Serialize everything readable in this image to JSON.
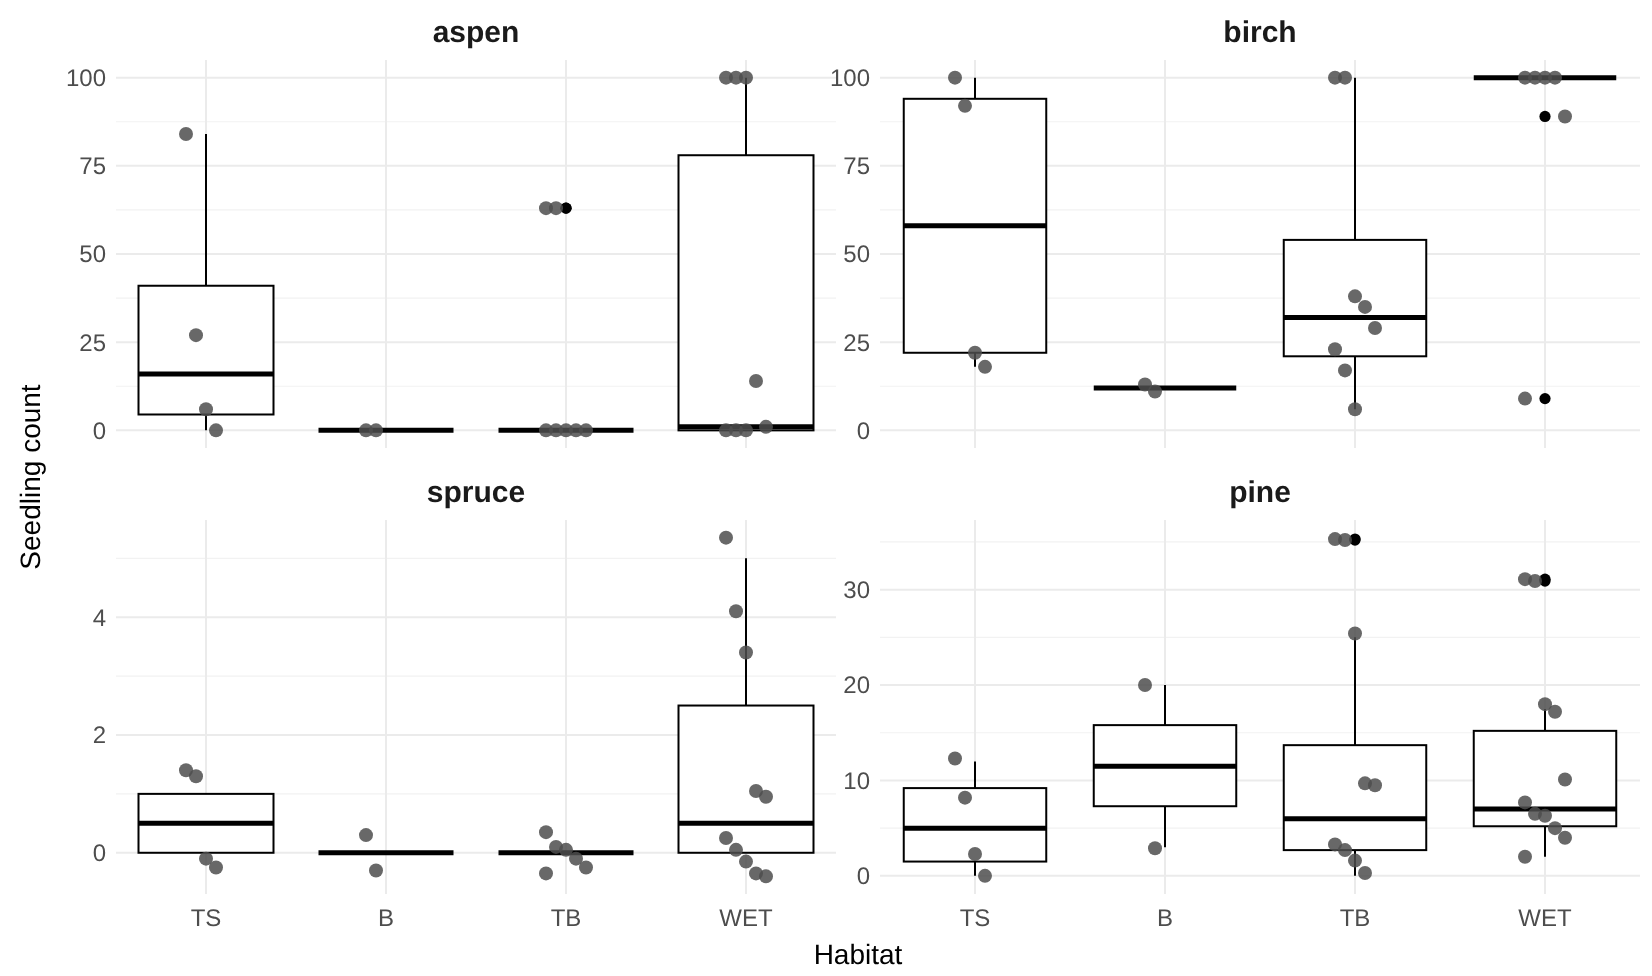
{
  "chart_data": [
    {
      "type": "box",
      "color": "#000000",
      "title": "aspen",
      "ylabel": "Seedling count",
      "categories": [
        "TS",
        "B",
        "TB",
        "WET"
      ],
      "ylim": [
        -5,
        105
      ],
      "yticks": [
        0,
        25,
        50,
        75,
        100
      ],
      "grid": true,
      "tick_labels": "y",
      "boxes": [
        {
          "low": 0,
          "q1": 4.5,
          "median": 16,
          "q3": 41,
          "high": 84
        },
        {
          "low": 0,
          "q1": 0,
          "median": 0,
          "q3": 0,
          "high": 0
        },
        {
          "low": 0,
          "q1": 0,
          "median": 0,
          "q3": 0,
          "high": 0,
          "outliers": [
            63,
            63
          ]
        },
        {
          "low": 0,
          "q1": 0,
          "median": 1,
          "q3": 78,
          "high": 100
        }
      ],
      "series": [
        {
          "type": "scatter",
          "color": "#4d4d4d",
          "marker": "circle",
          "x": [
            "TS",
            "TS",
            "TS",
            "TS",
            "B",
            "B",
            "TB",
            "TB",
            "TB",
            "TB",
            "TB",
            "TB",
            "TB",
            "WET",
            "WET",
            "WET",
            "WET",
            "WET",
            "WET",
            "WET",
            "WET"
          ],
          "values": [
            84,
            27,
            6,
            0,
            0,
            0,
            63,
            63,
            0,
            0,
            0,
            0,
            0,
            100,
            100,
            100,
            14,
            1,
            0,
            0,
            0
          ]
        }
      ]
    },
    {
      "type": "box",
      "color": "#000000",
      "title": "birch",
      "categories": [
        "TS",
        "B",
        "TB",
        "WET"
      ],
      "ylim": [
        -5,
        105
      ],
      "yticks": [
        0,
        25,
        50,
        75,
        100
      ],
      "grid": true,
      "tick_labels": "y",
      "boxes": [
        {
          "low": 18,
          "q1": 22,
          "median": 58,
          "q3": 94,
          "high": 100
        },
        {
          "low": 12,
          "q1": 12,
          "median": 12,
          "q3": 12,
          "high": 12
        },
        {
          "low": 6,
          "q1": 21,
          "median": 32,
          "q3": 54,
          "high": 100
        },
        {
          "low": 100,
          "q1": 100,
          "median": 100,
          "q3": 100,
          "high": 100,
          "outliers": [
            89,
            9
          ]
        }
      ],
      "series": [
        {
          "type": "scatter",
          "color": "#4d4d4d",
          "marker": "circle",
          "x": [
            "TS",
            "TS",
            "TS",
            "TS",
            "B",
            "B",
            "TB",
            "TB",
            "TB",
            "TB",
            "TB",
            "TB",
            "TB",
            "TB",
            "WET",
            "WET",
            "WET",
            "WET",
            "WET",
            "WET"
          ],
          "values": [
            100,
            92,
            22,
            18,
            13,
            11,
            100,
            100,
            38,
            35,
            29,
            23,
            17,
            6,
            100,
            100,
            100,
            100,
            89,
            9
          ]
        }
      ]
    },
    {
      "type": "box",
      "color": "#000000",
      "title": "spruce",
      "xlabel": "Habitat",
      "categories": [
        "TS",
        "B",
        "TB",
        "WET"
      ],
      "ylim": [
        -0.7,
        5.65
      ],
      "yticks": [
        0,
        2,
        4
      ],
      "grid": true,
      "boxes": [
        {
          "low": 0,
          "q1": 0,
          "median": 0.5,
          "q3": 1,
          "high": 1
        },
        {
          "low": 0,
          "q1": 0,
          "median": 0,
          "q3": 0,
          "high": 0
        },
        {
          "low": 0,
          "q1": 0,
          "median": 0,
          "q3": 0,
          "high": 0
        },
        {
          "low": 0,
          "q1": 0,
          "median": 0.5,
          "q3": 2.5,
          "high": 5
        }
      ],
      "series": [
        {
          "type": "scatter",
          "color": "#4d4d4d",
          "marker": "circle",
          "x": [
            "TS",
            "TS",
            "TS",
            "TS",
            "B",
            "B",
            "TB",
            "TB",
            "TB",
            "TB",
            "TB",
            "TB",
            "WET",
            "WET",
            "WET",
            "WET",
            "WET",
            "WET",
            "WET",
            "WET",
            "WET",
            "WET"
          ],
          "values": [
            1.4,
            1.3,
            -0.1,
            -0.25,
            0.3,
            -0.3,
            0.35,
            0.1,
            0.05,
            -0.1,
            -0.25,
            -0.35,
            5.35,
            4.1,
            3.4,
            1.05,
            0.95,
            0.25,
            0.05,
            -0.15,
            -0.35,
            -0.4
          ]
        }
      ]
    },
    {
      "type": "box",
      "color": "#000000",
      "title": "pine",
      "categories": [
        "TS",
        "B",
        "TB",
        "WET"
      ],
      "ylim": [
        -1.9,
        37.3
      ],
      "yticks": [
        0,
        10,
        20,
        30
      ],
      "grid": true,
      "boxes": [
        {
          "low": 0,
          "q1": 1.5,
          "median": 5,
          "q3": 9.2,
          "high": 12
        },
        {
          "low": 3,
          "q1": 7.3,
          "median": 11.5,
          "q3": 15.8,
          "high": 20
        },
        {
          "low": 0,
          "q1": 2.7,
          "median": 6,
          "q3": 13.7,
          "high": 25,
          "outliers": [
            35.3,
            35.2
          ]
        },
        {
          "low": 2,
          "q1": 5.2,
          "median": 7,
          "q3": 15.2,
          "high": 17.5,
          "outliers": [
            31.1,
            30.9
          ]
        }
      ],
      "series": [
        {
          "type": "scatter",
          "color": "#4d4d4d",
          "marker": "circle",
          "x": [
            "TS",
            "TS",
            "TS",
            "TS",
            "B",
            "B",
            "TB",
            "TB",
            "TB",
            "TB",
            "TB",
            "TB",
            "TB",
            "TB",
            "TB",
            "WET",
            "WET",
            "WET",
            "WET",
            "WET",
            "WET",
            "WET",
            "WET",
            "WET",
            "WET",
            "WET"
          ],
          "values": [
            12.3,
            8.2,
            2.3,
            0,
            20,
            2.9,
            35.3,
            35.2,
            25.4,
            9.7,
            9.5,
            3.3,
            2.7,
            1.6,
            0.3,
            31.1,
            30.9,
            18,
            17.2,
            10.1,
            7.7,
            6.5,
            6.3,
            5,
            4,
            2
          ]
        }
      ]
    }
  ]
}
